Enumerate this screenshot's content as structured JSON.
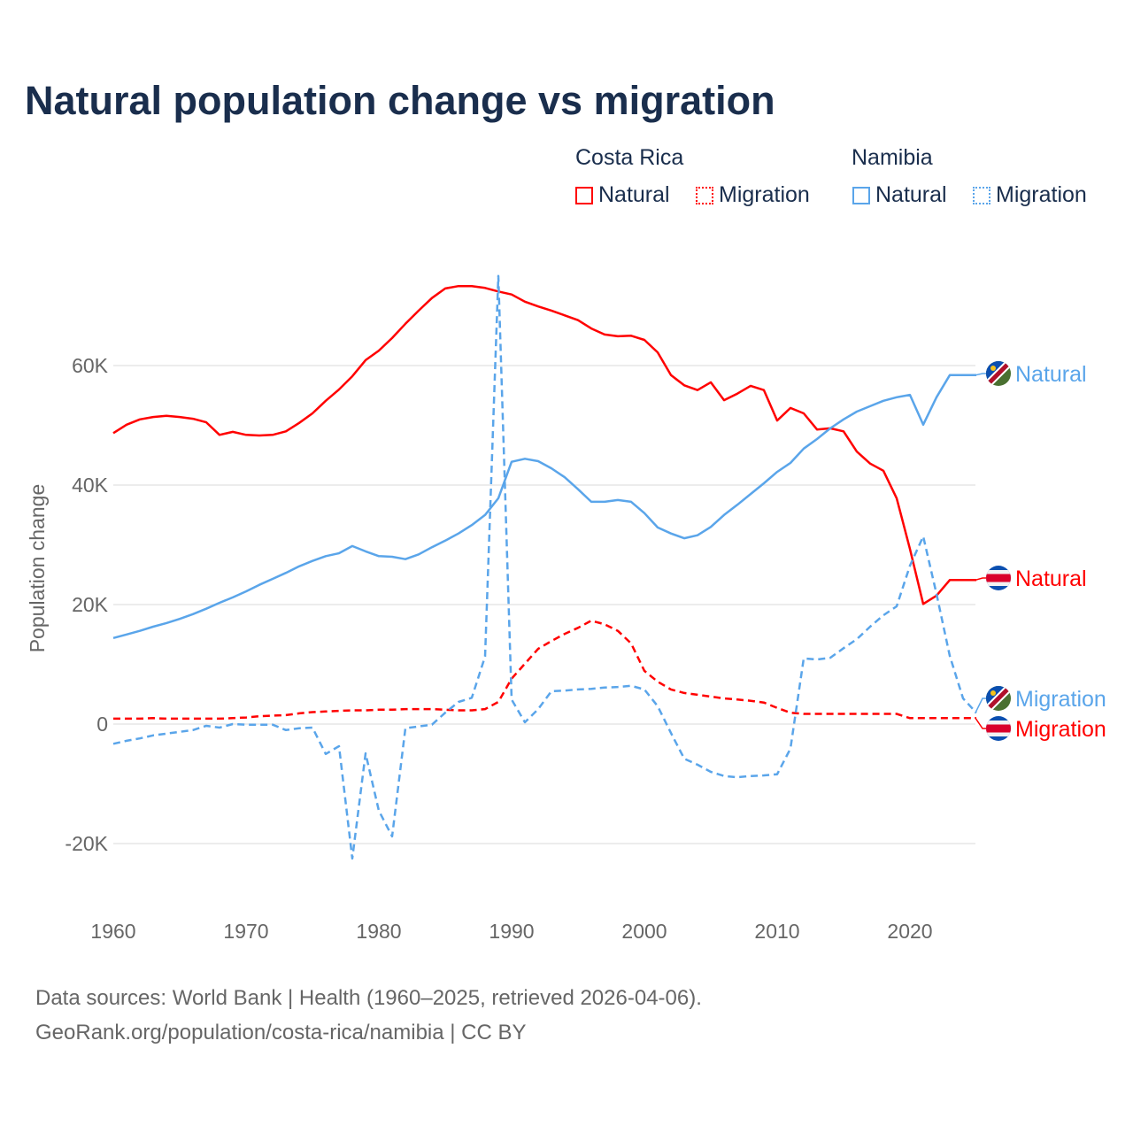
{
  "title": "Natural population change vs migration",
  "legend": {
    "groups": [
      {
        "name": "Costa Rica",
        "items": [
          {
            "label": "Natural",
            "style": "solid"
          },
          {
            "label": "Migration",
            "style": "dotted"
          }
        ],
        "color": "#ff0000"
      },
      {
        "name": "Namibia",
        "items": [
          {
            "label": "Natural",
            "style": "solid"
          },
          {
            "label": "Migration",
            "style": "dotted"
          }
        ],
        "color": "#5aa5ea"
      }
    ]
  },
  "source": {
    "line1": "Data sources: World Bank | Health (1960–2025, retrieved 2026-04-06).",
    "line2": "GeoRank.org/population/costa-rica/namibia | CC BY"
  },
  "chart_data": {
    "type": "line",
    "title": "Natural population change vs migration",
    "xlabel": "",
    "ylabel": "Population change",
    "xlim": [
      1960,
      2025
    ],
    "ylim": [
      -30000,
      75000
    ],
    "xticks": [
      1960,
      1970,
      1980,
      1990,
      2000,
      2010,
      2020
    ],
    "xtick_labels": [
      "1960",
      "1970",
      "1980",
      "1990",
      "2000",
      "2010",
      "2020"
    ],
    "yticks": [
      -20000,
      0,
      20000,
      40000,
      60000
    ],
    "ytick_labels": [
      "-20K",
      "0",
      "20K",
      "40K",
      "60K"
    ],
    "grid": true,
    "x_start": 1960,
    "series": [
      {
        "name": "Costa Rica Natural",
        "end_label": "Natural",
        "country": "Costa Rica",
        "color": "#ff0000",
        "dash": false,
        "values": [
          48700,
          50100,
          51000,
          51400,
          51600,
          51400,
          51100,
          50500,
          48400,
          48900,
          48400,
          48300,
          48400,
          49000,
          50400,
          52000,
          54100,
          56000,
          58200,
          60900,
          62500,
          64600,
          67000,
          69200,
          71300,
          72900,
          73300,
          73300,
          73000,
          72400,
          71900,
          70700,
          69900,
          69200,
          68400,
          67600,
          66200,
          65200,
          64900,
          65000,
          64300,
          62200,
          58400,
          56700,
          55900,
          57200,
          54200,
          55300,
          56600,
          55900,
          50800,
          52900,
          52000,
          49300,
          49500,
          49000,
          45600,
          43600,
          42400,
          37800,
          29300,
          20100,
          21500,
          24100,
          24100,
          24100
        ]
      },
      {
        "name": "Costa Rica Migration",
        "end_label": "Migration",
        "country": "Costa Rica",
        "color": "#ff0000",
        "dash": true,
        "values": [
          900,
          900,
          900,
          1000,
          900,
          900,
          900,
          900,
          900,
          1000,
          1100,
          1300,
          1400,
          1500,
          1800,
          2000,
          2100,
          2200,
          2300,
          2300,
          2400,
          2400,
          2500,
          2500,
          2500,
          2400,
          2300,
          2300,
          2500,
          3700,
          7600,
          10100,
          12600,
          13900,
          15100,
          16100,
          17300,
          16700,
          15600,
          13500,
          8900,
          7100,
          5800,
          5200,
          4900,
          4600,
          4300,
          4100,
          3900,
          3600,
          2700,
          1900,
          1700,
          1700,
          1700,
          1700,
          1700,
          1700,
          1700,
          1700,
          1000,
          1000,
          1000,
          1000,
          1000,
          1000
        ]
      },
      {
        "name": "Namibia Natural",
        "end_label": "Natural",
        "country": "Namibia",
        "color": "#5aa5ea",
        "dash": false,
        "values": [
          14400,
          15000,
          15600,
          16300,
          16900,
          17600,
          18400,
          19300,
          20300,
          21200,
          22200,
          23300,
          24300,
          25300,
          26400,
          27300,
          28100,
          28600,
          29800,
          28900,
          28100,
          28000,
          27600,
          28400,
          29600,
          30700,
          31900,
          33300,
          35000,
          37800,
          43900,
          44400,
          44000,
          42800,
          41300,
          39300,
          37200,
          37200,
          37500,
          37200,
          35300,
          32900,
          31900,
          31100,
          31600,
          33000,
          35000,
          36700,
          38500,
          40300,
          42200,
          43700,
          46100,
          47700,
          49500,
          51000,
          52300,
          53200,
          54100,
          54700,
          55100,
          50100,
          54700,
          58400,
          58400,
          58400
        ]
      },
      {
        "name": "Namibia Migration",
        "end_label": "Migration",
        "country": "Namibia",
        "color": "#5aa5ea",
        "dash": true,
        "values": [
          -3300,
          -2800,
          -2400,
          -1900,
          -1600,
          -1300,
          -1000,
          -300,
          -600,
          0,
          -100,
          -100,
          -100,
          -1000,
          -700,
          -600,
          -5000,
          -3700,
          -22500,
          -4900,
          -14500,
          -18800,
          -700,
          -400,
          -100,
          1900,
          3700,
          4400,
          11300,
          75000,
          4100,
          300,
          2500,
          5500,
          5600,
          5800,
          5900,
          6100,
          6200,
          6400,
          5800,
          3000,
          -1500,
          -5800,
          -6800,
          -8000,
          -8700,
          -8900,
          -8700,
          -8600,
          -8400,
          -4100,
          11000,
          10800,
          11100,
          12700,
          14200,
          16300,
          18200,
          19700,
          26500,
          31400,
          21800,
          11400,
          4300,
          1900
        ]
      }
    ]
  }
}
